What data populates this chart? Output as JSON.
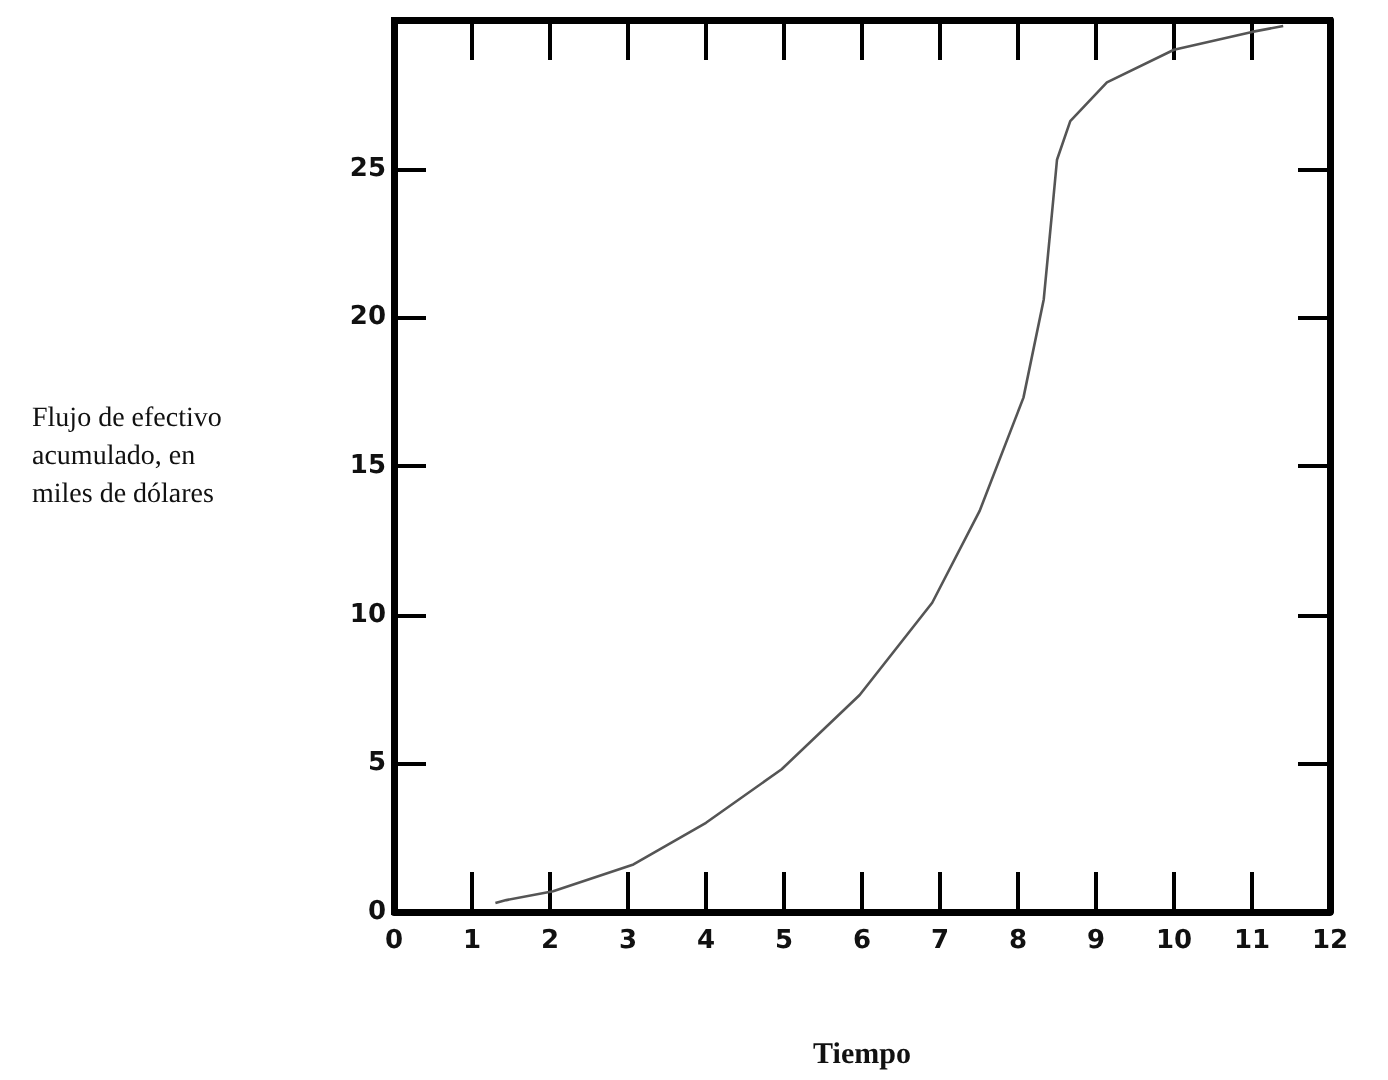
{
  "chart_data": {
    "type": "line",
    "xlabel": "Tiempo",
    "ylabel": "Flujo de efectivo\nacumulado, en\nmiles de dólares",
    "x": [
      1.3,
      1.44,
      2.04,
      3.07,
      4.0,
      4.97,
      5.97,
      6.9,
      7.51,
      8.07,
      8.33,
      8.45,
      8.5,
      8.67,
      9.14,
      10.0,
      11.0,
      11.4
    ],
    "series": [
      {
        "color": "#555555",
        "values": [
          0.3,
          0.4,
          0.7,
          1.6,
          3.0,
          4.8,
          7.3,
          10.4,
          13.5,
          17.3,
          20.6,
          23.9,
          25.3,
          26.6,
          27.9,
          29.0,
          29.6,
          29.8
        ]
      }
    ],
    "xlim": [
      0,
      12
    ],
    "ylim": [
      0,
      30
    ],
    "xticks": [
      0,
      1,
      2,
      3,
      4,
      5,
      6,
      7,
      8,
      9,
      10,
      11,
      12
    ],
    "yticks": [
      0,
      5,
      10,
      15,
      20,
      25
    ],
    "grid": false,
    "marker": "none",
    "line_style": "solid"
  }
}
